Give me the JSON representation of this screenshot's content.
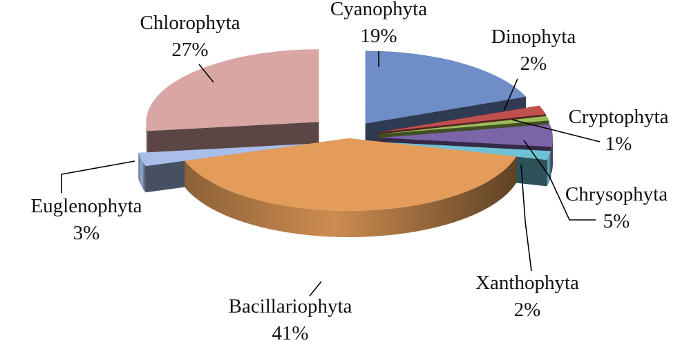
{
  "chart_data": {
    "type": "pie",
    "style": "3d-exploded",
    "title": "",
    "slices": [
      {
        "name": "Cyanophyta",
        "value": 19,
        "label": "19%",
        "color": "#6F8DC6"
      },
      {
        "name": "Dinophyta",
        "value": 2,
        "label": "2%",
        "color": "#C0504D"
      },
      {
        "name": "Cryptophyta",
        "value": 1,
        "label": "1%",
        "color": "#9BBB59"
      },
      {
        "name": "Chrysophyta",
        "value": 5,
        "label": "5%",
        "color": "#7B64A8"
      },
      {
        "name": "Xanthophyta",
        "value": 2,
        "label": "2%",
        "color": "#6FC2D6"
      },
      {
        "name": "Bacillariophyta",
        "value": 41,
        "label": "41%",
        "color": "#E39C59"
      },
      {
        "name": "Euglenophyta",
        "value": 3,
        "label": "3%",
        "color": "#A9BEE8"
      },
      {
        "name": "Chlorophyta",
        "value": 27,
        "label": "27%",
        "color": "#D9A6A4"
      }
    ],
    "legend": "none"
  }
}
